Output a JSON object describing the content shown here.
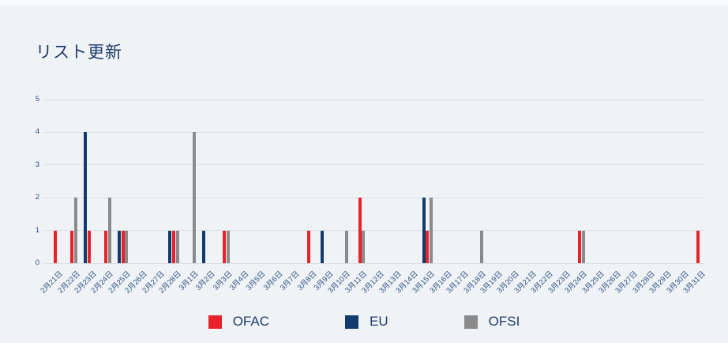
{
  "page": {
    "title": "リスト更新"
  },
  "theme": {
    "background": "#f0f3f6",
    "grid_color": "#dadde1",
    "title_color": "#1d3a6a",
    "axis_label_color": "#2a5184",
    "legend_text_color": "#1d3c6e"
  },
  "chart_data": {
    "type": "bar",
    "title": "リスト更新",
    "xlabel": "",
    "ylabel": "",
    "ylim": [
      0,
      5
    ],
    "yticks": [
      0,
      1,
      2,
      3,
      4,
      5
    ],
    "grid": true,
    "legend_position": "bottom",
    "bar_draw_order": [
      "EU",
      "OFAC",
      "OFSI"
    ],
    "categories": [
      "2月21日",
      "2月22日",
      "2月23日",
      "2月24日",
      "2月25日",
      "2月26日",
      "2月27日",
      "2月28日",
      "3月1日",
      "3月2日",
      "3月3日",
      "3月4日",
      "3月5日",
      "3月6日",
      "3月7日",
      "3月8日",
      "3月9日",
      "3月10日",
      "3月11日",
      "3月12日",
      "3月13日",
      "3月14日",
      "3月15日",
      "3月16日",
      "3月17日",
      "3月18日",
      "3月19日",
      "3月20日",
      "3月21日",
      "3月22日",
      "3月23日",
      "3月24日",
      "3月25日",
      "3月26日",
      "3月27日",
      "3月28日",
      "3月29日",
      "3月30日",
      "3月31日"
    ],
    "series": [
      {
        "name": "OFAC",
        "color": "#e8222a",
        "values": [
          1,
          1,
          1,
          1,
          1,
          0,
          0,
          1,
          0,
          0,
          1,
          0,
          0,
          0,
          0,
          1,
          0,
          0,
          2,
          0,
          0,
          0,
          1,
          0,
          0,
          0,
          0,
          0,
          0,
          0,
          0,
          1,
          0,
          0,
          0,
          0,
          0,
          0,
          1
        ]
      },
      {
        "name": "EU",
        "color": "#123a6d",
        "values": [
          0,
          0,
          4,
          0,
          1,
          0,
          0,
          1,
          0,
          1,
          0,
          0,
          0,
          0,
          0,
          0,
          1,
          0,
          0,
          0,
          0,
          0,
          2,
          0,
          0,
          0,
          0,
          0,
          0,
          0,
          0,
          0,
          0,
          0,
          0,
          0,
          0,
          0,
          0
        ]
      },
      {
        "name": "OFSI",
        "color": "#8a8a8a",
        "values": [
          0,
          2,
          0,
          2,
          1,
          0,
          0,
          1,
          4,
          0,
          1,
          0,
          0,
          0,
          0,
          0,
          0,
          1,
          1,
          0,
          0,
          0,
          2,
          0,
          0,
          1,
          0,
          0,
          0,
          0,
          0,
          1,
          0,
          0,
          0,
          0,
          0,
          0,
          0
        ]
      }
    ]
  }
}
